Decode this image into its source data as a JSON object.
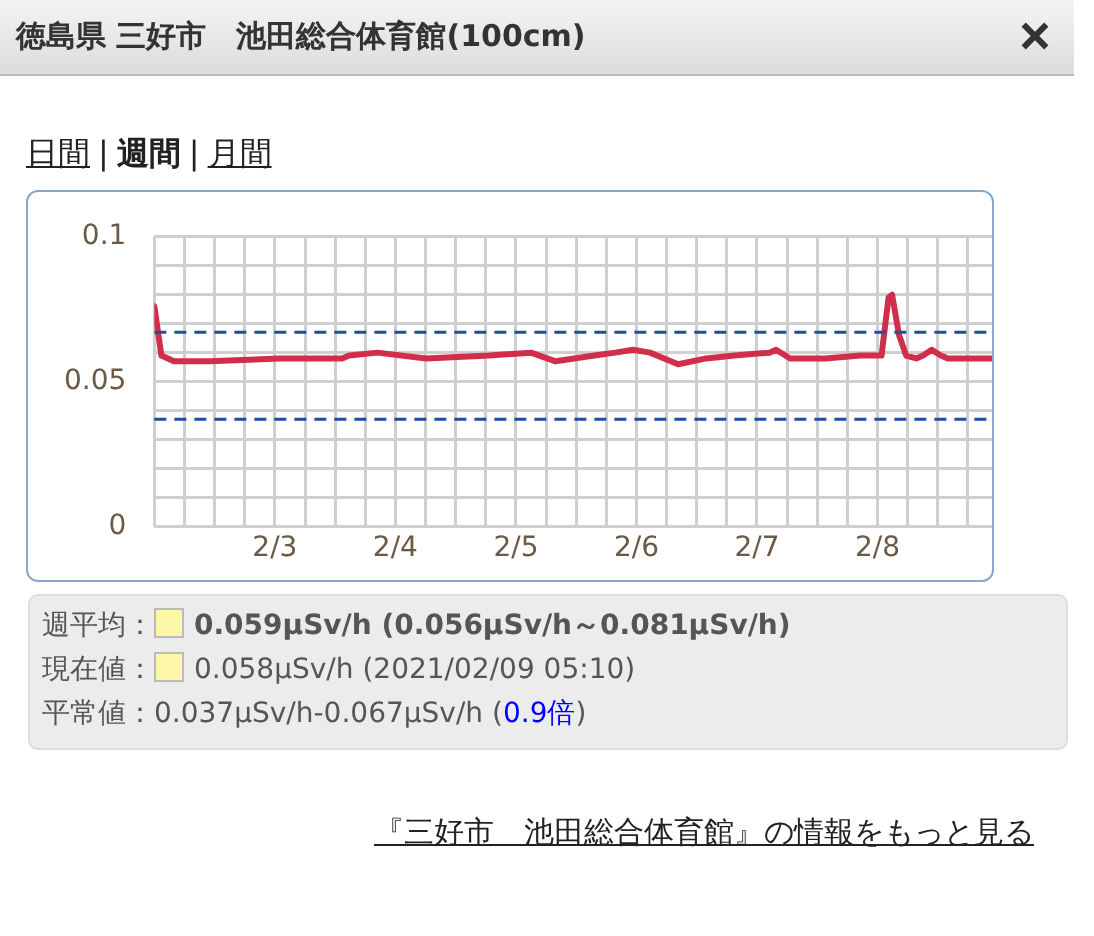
{
  "chart_data": {
    "type": "line",
    "title": "徳島県 三好市　池田総合体育館(100cm)",
    "annotations": [
      "日間",
      "|",
      "週間",
      "|",
      "月間",
      "週平均：",
      "0.059μSv/h (0.056μSv/h～0.081μSv/h)",
      "現在値：",
      "0.058μSv/h (2021/02/09 05:10)",
      "平常値：0.037μSv/h-0.067μSv/h (",
      "0.9倍",
      ")",
      "『三好市　池田総合体育館』の情報をもっと見る"
    ],
    "series": [
      {
        "color": "#d12e4c",
        "x": [
          "2021-02-02T00:00",
          "2021-02-02T01:24",
          "2021-02-02T03:54",
          "2021-02-02T10:54",
          "2021-02-03T00:48",
          "2021-02-03T13:24",
          "2021-02-03T14:48",
          "2021-02-03T20:24",
          "2021-02-04T06:06",
          "2021-02-04T18:42",
          "2021-02-05T03:00",
          "2021-02-05T07:54",
          "2021-02-05T15:36",
          "2021-02-05T19:48",
          "2021-02-05T23:18",
          "2021-02-06T02:42",
          "2021-02-06T05:30",
          "2021-02-06T08:18",
          "2021-02-06T13:54",
          "2021-02-06T19:30",
          "2021-02-07T02:30",
          "2021-02-07T03:48",
          "2021-02-07T06:36",
          "2021-02-07T13:36",
          "2021-02-07T20:36",
          "2021-02-08T00:48",
          "2021-02-08T02:12",
          "2021-02-08T02:54",
          "2021-02-08T04:18",
          "2021-02-08T05:42",
          "2021-02-08T07:42",
          "2021-02-08T09:06",
          "2021-02-08T10:48",
          "2021-02-08T12:36",
          "2021-02-08T14:00",
          "2021-02-08T22:48"
        ],
        "values": [
          0.076,
          0.059,
          0.057,
          0.057,
          0.058,
          0.058,
          0.059,
          0.06,
          0.058,
          0.059,
          0.06,
          0.057,
          0.059,
          0.06,
          0.061,
          0.06,
          0.058,
          0.056,
          0.058,
          0.059,
          0.06,
          0.061,
          0.058,
          0.058,
          0.059,
          0.059,
          0.079,
          0.08,
          0.066,
          0.059,
          0.058,
          0.059,
          0.061,
          0.059,
          0.058,
          0.058
        ]
      }
    ],
    "xlim": [
      "2021-02-02T00:00",
      "2021-02-08T22:48"
    ],
    "xticks": [
      {
        "value": "2021-02-02T00:00",
        "label": null
      },
      {
        "value": "2021-02-02T06:00",
        "label": null
      },
      {
        "value": "2021-02-02T12:00",
        "label": null
      },
      {
        "value": "2021-02-02T18:00",
        "label": null
      },
      {
        "value": "2021-02-03T00:00",
        "label": "2/3"
      },
      {
        "value": "2021-02-03T06:00",
        "label": null
      },
      {
        "value": "2021-02-03T12:00",
        "label": null
      },
      {
        "value": "2021-02-03T18:00",
        "label": null
      },
      {
        "value": "2021-02-04T00:00",
        "label": "2/4"
      },
      {
        "value": "2021-02-04T06:00",
        "label": null
      },
      {
        "value": "2021-02-04T12:00",
        "label": null
      },
      {
        "value": "2021-02-04T18:00",
        "label": null
      },
      {
        "value": "2021-02-05T00:00",
        "label": "2/5"
      },
      {
        "value": "2021-02-05T06:00",
        "label": null
      },
      {
        "value": "2021-02-05T12:00",
        "label": null
      },
      {
        "value": "2021-02-05T18:00",
        "label": null
      },
      {
        "value": "2021-02-06T00:00",
        "label": "2/6"
      },
      {
        "value": "2021-02-06T06:00",
        "label": null
      },
      {
        "value": "2021-02-06T12:00",
        "label": null
      },
      {
        "value": "2021-02-06T18:00",
        "label": null
      },
      {
        "value": "2021-02-07T00:00",
        "label": "2/7"
      },
      {
        "value": "2021-02-07T06:00",
        "label": null
      },
      {
        "value": "2021-02-07T12:00",
        "label": null
      },
      {
        "value": "2021-02-07T18:00",
        "label": null
      },
      {
        "value": "2021-02-08T00:00",
        "label": "2/8"
      },
      {
        "value": "2021-02-08T06:00",
        "label": null
      },
      {
        "value": "2021-02-08T12:00",
        "label": null
      },
      {
        "value": "2021-02-08T18:00",
        "label": null
      }
    ],
    "ylim": [
      0,
      0.1
    ],
    "yticks": [
      0,
      {
        "value": 0.01,
        "label": null
      },
      {
        "value": 0.02,
        "label": null
      },
      {
        "value": 0.03,
        "label": null
      },
      {
        "value": 0.04,
        "label": null
      },
      0.05,
      {
        "value": 0.06,
        "label": null
      },
      {
        "value": 0.07,
        "label": null
      },
      {
        "value": 0.08,
        "label": null
      },
      {
        "value": 0.09,
        "label": null
      },
      0.1
    ],
    "ref_lines": [
      {
        "axis": "y",
        "value": 0.067,
        "color": "#1d4f9c",
        "line_style": "dashed"
      },
      {
        "axis": "y",
        "value": 0.037,
        "color": "#1d4f9c",
        "line_style": "dashed"
      }
    ],
    "grid": true,
    "legend": false,
    "marker": "none",
    "line_style": "solid"
  }
}
